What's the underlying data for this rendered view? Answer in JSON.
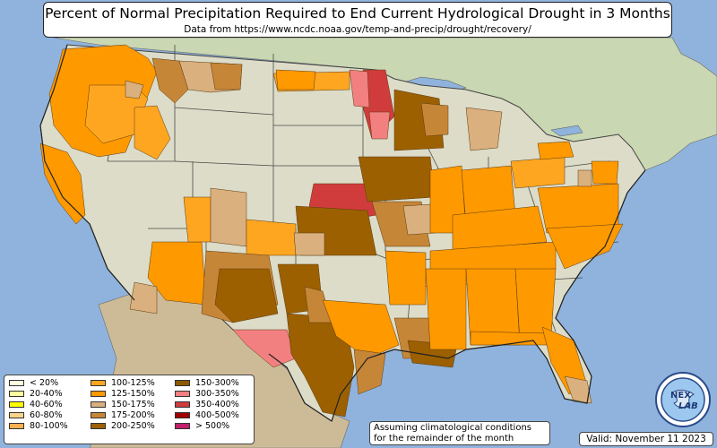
{
  "title": "Percent of Normal Precipitation Required to End Current Hydrological Drought in 3 Months",
  "subtitle": "Data from https://www.ncdc.noaa.gov/temp-and-precip/drought/recovery/",
  "legend": {
    "columns": [
      [
        {
          "label": "< 20%",
          "color": "#ffffe0"
        },
        {
          "label": "20-40%",
          "color": "#ffff9e"
        },
        {
          "label": "40-60%",
          "color": "#ffff00"
        },
        {
          "label": "60-80%",
          "color": "#fcd28a"
        },
        {
          "label": "80-100%",
          "color": "#f7b24f"
        }
      ],
      [
        {
          "label": "100-125%",
          "color": "#ffa621"
        },
        {
          "label": "125-150%",
          "color": "#ff9900"
        },
        {
          "label": "150-175%",
          "color": "#d9b07e"
        },
        {
          "label": "175-200%",
          "color": "#c68638"
        },
        {
          "label": "200-250%",
          "color": "#9c6000"
        }
      ],
      [
        {
          "label": "150-300%",
          "color": "#8b5a00"
        },
        {
          "label": "300-350%",
          "color": "#f38080"
        },
        {
          "label": "350-400%",
          "color": "#d03c3c"
        },
        {
          "label": "400-500%",
          "color": "#a00000"
        },
        {
          "label": "> 500%",
          "color": "#c0206a"
        }
      ]
    ]
  },
  "note": {
    "line1": "Assuming climatological conditions",
    "line2": "for the remainder of the month"
  },
  "valid": "Valid: November 11 2023",
  "logo": {
    "text_a": "NEX",
    "text_b": "LAB",
    "icon": "nexlab-globe-logo"
  },
  "colors": {
    "ocean": "#8fb3dc",
    "land": "#dcdcc8",
    "canada": "#c9d7b2",
    "mexico": "#cdbb97",
    "orange": "#ff9900",
    "lightorange": "#ffa621",
    "tan": "#d9b07e",
    "midbrown": "#c68638",
    "darkbrown": "#9c6000",
    "pink": "#f38080",
    "red": "#d03c3c"
  }
}
